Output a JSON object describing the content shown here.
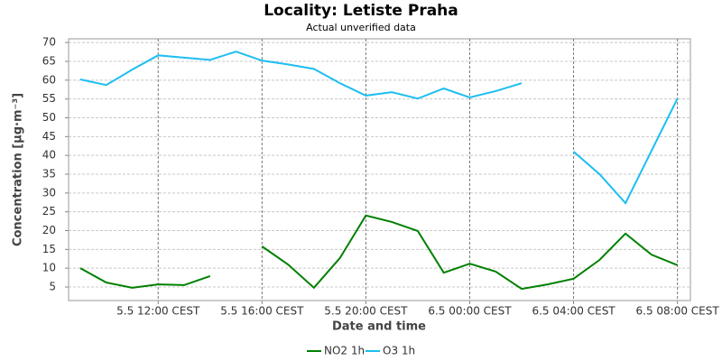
{
  "chart_data": {
    "type": "line",
    "title": "Locality: Letiste Praha",
    "subtitle": "Actual unverified data",
    "x_label": "Date and time",
    "y_label": "Concentration [µg·m⁻³]",
    "x": [
      9,
      10,
      11,
      12,
      13,
      14,
      15,
      16,
      17,
      18,
      19,
      20,
      21,
      22,
      23,
      24,
      25,
      26,
      27,
      28,
      29,
      30,
      31,
      32
    ],
    "xlim": [
      8.55,
      32.5
    ],
    "xticks": [
      {
        "value": 12,
        "label": "5.5 12:00 CEST"
      },
      {
        "value": 16,
        "label": "5.5 16:00 CEST"
      },
      {
        "value": 20,
        "label": "5.5 20:00 CEST"
      },
      {
        "value": 24,
        "label": "6.5 00:00 CEST"
      },
      {
        "value": 28,
        "label": "6.5 04:00 CEST"
      },
      {
        "value": 32,
        "label": "6.5 08:00 CEST"
      }
    ],
    "ylim": [
      1.4,
      71
    ],
    "yticks": [
      5,
      10,
      15,
      20,
      25,
      30,
      35,
      40,
      45,
      50,
      55,
      60,
      65,
      70
    ],
    "grid": true,
    "legend": "bottom",
    "series": [
      {
        "name": "NO2 1h",
        "color": "#008000",
        "values": [
          10.0,
          6.2,
          4.8,
          5.7,
          5.5,
          7.9,
          null,
          15.8,
          11.0,
          4.8,
          12.7,
          24.0,
          22.3,
          19.9,
          8.8,
          11.2,
          9.1,
          4.5,
          5.7,
          7.2,
          12.2,
          19.2,
          13.6,
          10.8
        ]
      },
      {
        "name": "O3 1h",
        "color": "#1ebef0",
        "values": [
          60.2,
          58.7,
          62.8,
          66.6,
          66.0,
          65.4,
          67.6,
          65.2,
          64.2,
          63.0,
          59.2,
          55.9,
          56.8,
          55.1,
          57.8,
          55.4,
          57.1,
          59.2,
          null,
          41.0,
          35.0,
          27.3,
          41.2,
          55.1
        ]
      }
    ]
  }
}
